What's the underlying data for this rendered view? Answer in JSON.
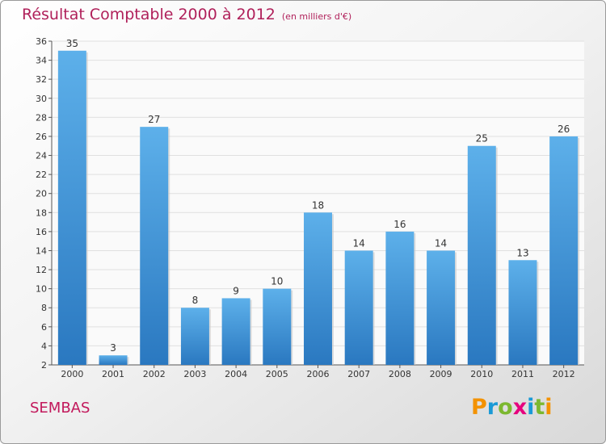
{
  "header": {
    "title": "Résultat Comptable 2000 à 2012",
    "subtitle": "(en milliers d'€)"
  },
  "place_name": "SEMBAS",
  "logo": {
    "text": "Proxiti",
    "letters": [
      "P",
      "r",
      "o",
      "x",
      "i",
      "t",
      "i"
    ],
    "colors": [
      "#f39200",
      "#1a9ad6",
      "#7cb82f",
      "#e6007e",
      "#1a9ad6",
      "#7cb82f",
      "#f39200"
    ]
  },
  "chart_data": {
    "type": "bar",
    "title": "Résultat Comptable 2000 à 2012",
    "subtitle": "(en milliers d'€)",
    "categories": [
      "2000",
      "2001",
      "2002",
      "2003",
      "2004",
      "2005",
      "2006",
      "2007",
      "2008",
      "2009",
      "2010",
      "2011",
      "2012"
    ],
    "values": [
      35,
      3,
      27,
      8,
      9,
      10,
      18,
      14,
      16,
      14,
      25,
      13,
      26
    ],
    "ylim": [
      2,
      36
    ],
    "yticks": [
      2,
      4,
      6,
      8,
      10,
      12,
      14,
      16,
      18,
      20,
      22,
      24,
      26,
      28,
      30,
      32,
      34,
      36
    ],
    "grid": true,
    "bar_color": "#3a8fd6",
    "xlabel": "",
    "ylabel": ""
  }
}
